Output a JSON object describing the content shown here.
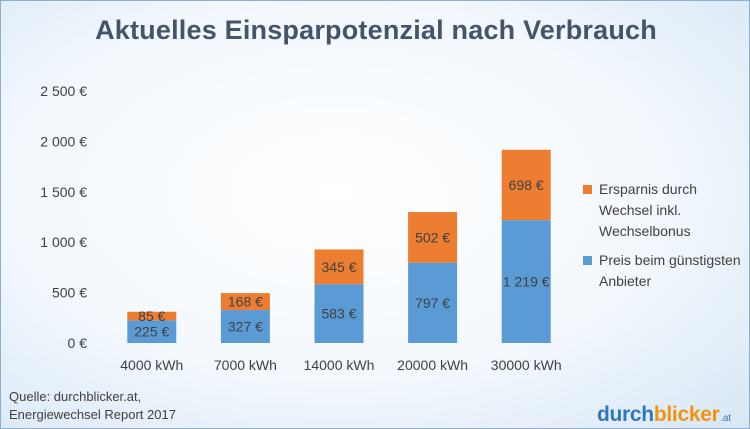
{
  "chart_data": {
    "type": "bar",
    "stacked": true,
    "title": "Aktuelles Einsparpotenzial nach Verbrauch",
    "categories": [
      "4000 kWh",
      "7000 kWh",
      "14000 kWh",
      "20000 kWh",
      "30000 kWh"
    ],
    "series": [
      {
        "name": "Preis beim günstigsten Anbieter",
        "color": "#5b9bd5",
        "values": [
          225,
          327,
          583,
          797,
          1219
        ],
        "labels": [
          "225 €",
          "327 €",
          "583 €",
          "797 €",
          "1 219 €"
        ]
      },
      {
        "name": "Ersparnis durch Wechsel inkl. Wechselbonus",
        "color": "#ed7d31",
        "values": [
          85,
          168,
          345,
          502,
          698
        ],
        "labels": [
          "85 €",
          "168 €",
          "345 €",
          "502 €",
          "698 €"
        ]
      }
    ],
    "ylim": [
      0,
      2500
    ],
    "yticks": [
      0,
      500,
      1000,
      1500,
      2000,
      2500
    ],
    "ytick_labels": [
      "0 €",
      "500 €",
      "1 000 €",
      "1 500 €",
      "2 000 €",
      "2 500 €"
    ],
    "grid": false,
    "legend_position": "right"
  },
  "legend": [
    {
      "label": "Ersparnis durch Wechsel inkl. Wechselbonus",
      "color": "#ed7d31"
    },
    {
      "label": "Preis beim günstigsten Anbieter",
      "color": "#5b9bd5"
    }
  ],
  "source": {
    "line1": "Quelle: durchblicker.at,",
    "line2": "Energiewechsel Report 2017"
  },
  "logo": {
    "part1": "durch",
    "part2": "blicker",
    "part3": ".at"
  }
}
